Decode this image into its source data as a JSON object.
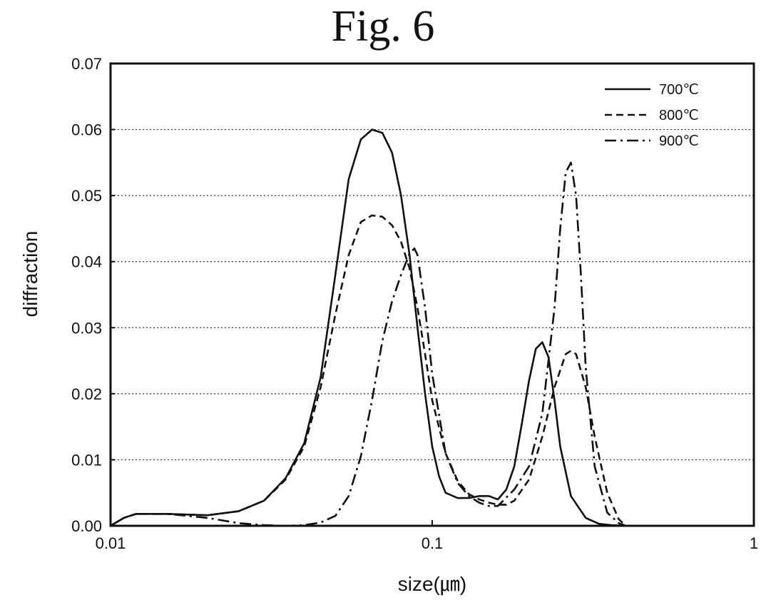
{
  "figure_title": "Fig. 6",
  "chart_data": {
    "type": "line",
    "title": "Fig. 6",
    "xlabel": "size(㎛)",
    "ylabel": "diffraction",
    "xscale": "log",
    "xlim": [
      0.01,
      1
    ],
    "ylim": [
      0,
      0.07
    ],
    "x_ticks": [
      0.01,
      0.1,
      1
    ],
    "x_tick_labels": [
      "0.01",
      "0.1",
      "1"
    ],
    "y_ticks": [
      0,
      0.01,
      0.02,
      0.03,
      0.04,
      0.05,
      0.06,
      0.07
    ],
    "y_tick_labels": [
      "0.00",
      "0.01",
      "0.02",
      "0.03",
      "0.04",
      "0.05",
      "0.06",
      "0.07"
    ],
    "grid": "horizontal dotted",
    "legend_position": "top-right",
    "series": [
      {
        "name": "700℃",
        "style": "solid",
        "x": [
          0.01,
          0.011,
          0.012,
          0.015,
          0.02,
          0.025,
          0.03,
          0.035,
          0.04,
          0.045,
          0.05,
          0.055,
          0.06,
          0.065,
          0.07,
          0.075,
          0.08,
          0.085,
          0.09,
          0.095,
          0.1,
          0.105,
          0.11,
          0.12,
          0.13,
          0.14,
          0.15,
          0.16,
          0.17,
          0.18,
          0.19,
          0.2,
          0.21,
          0.22,
          0.23,
          0.24,
          0.25,
          0.27,
          0.3,
          0.33,
          0.36,
          0.4
        ],
        "y": [
          0.0,
          0.0012,
          0.0018,
          0.0018,
          0.0016,
          0.0022,
          0.0038,
          0.0072,
          0.0125,
          0.0225,
          0.038,
          0.0525,
          0.0585,
          0.06,
          0.0595,
          0.0565,
          0.05,
          0.041,
          0.03,
          0.02,
          0.012,
          0.0075,
          0.005,
          0.0042,
          0.0042,
          0.0045,
          0.0045,
          0.004,
          0.0055,
          0.009,
          0.0155,
          0.022,
          0.0268,
          0.0278,
          0.0255,
          0.019,
          0.012,
          0.0045,
          0.0012,
          0.0003,
          0.0001,
          0.0
        ]
      },
      {
        "name": "800℃",
        "style": "dashed",
        "x": [
          0.01,
          0.011,
          0.012,
          0.015,
          0.02,
          0.025,
          0.03,
          0.035,
          0.04,
          0.045,
          0.05,
          0.055,
          0.06,
          0.065,
          0.07,
          0.075,
          0.08,
          0.085,
          0.09,
          0.095,
          0.1,
          0.11,
          0.12,
          0.13,
          0.14,
          0.15,
          0.16,
          0.17,
          0.18,
          0.2,
          0.22,
          0.24,
          0.26,
          0.27,
          0.28,
          0.3,
          0.32,
          0.35,
          0.38,
          0.4
        ],
        "y": [
          0.0,
          0.0012,
          0.0018,
          0.0018,
          0.0016,
          0.0022,
          0.0038,
          0.007,
          0.012,
          0.021,
          0.032,
          0.041,
          0.046,
          0.047,
          0.0468,
          0.0455,
          0.043,
          0.039,
          0.033,
          0.026,
          0.019,
          0.011,
          0.0068,
          0.0048,
          0.004,
          0.0035,
          0.0032,
          0.0032,
          0.0038,
          0.007,
          0.0135,
          0.021,
          0.026,
          0.0265,
          0.026,
          0.021,
          0.0135,
          0.005,
          0.001,
          0.0
        ]
      },
      {
        "name": "900℃",
        "style": "dash-dot",
        "x": [
          0.01,
          0.011,
          0.012,
          0.015,
          0.02,
          0.025,
          0.03,
          0.035,
          0.04,
          0.045,
          0.05,
          0.055,
          0.06,
          0.065,
          0.07,
          0.075,
          0.08,
          0.085,
          0.088,
          0.09,
          0.095,
          0.1,
          0.11,
          0.12,
          0.13,
          0.14,
          0.15,
          0.16,
          0.18,
          0.2,
          0.22,
          0.24,
          0.25,
          0.26,
          0.27,
          0.28,
          0.29,
          0.3,
          0.32,
          0.35,
          0.38,
          0.4
        ],
        "y": [
          0.0,
          0.0012,
          0.0018,
          0.0018,
          0.0012,
          0.0004,
          0.0001,
          0.0,
          0.0001,
          0.0005,
          0.0015,
          0.0045,
          0.0105,
          0.019,
          0.028,
          0.034,
          0.038,
          0.0412,
          0.042,
          0.041,
          0.033,
          0.023,
          0.011,
          0.0065,
          0.0045,
          0.0035,
          0.003,
          0.003,
          0.0055,
          0.009,
          0.017,
          0.033,
          0.045,
          0.0535,
          0.055,
          0.05,
          0.038,
          0.024,
          0.009,
          0.002,
          0.0004,
          0.0
        ]
      }
    ]
  }
}
